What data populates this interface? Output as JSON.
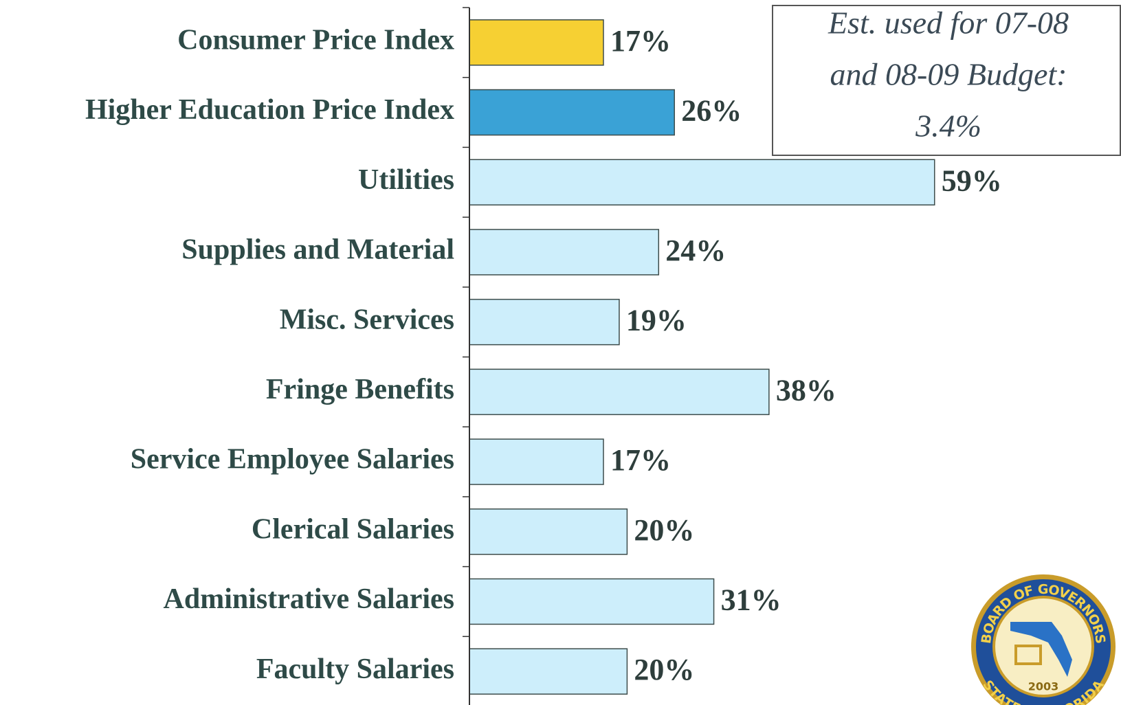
{
  "chart_data": {
    "type": "barh",
    "categories": [
      "Consumer Price Index",
      "Higher Education Price Index",
      "Utilities",
      "Supplies and Material",
      "Misc. Services",
      "Fringe Benefits",
      "Service Employee Salaries",
      "Clerical Salaries",
      "Administrative Salaries",
      "Faculty Salaries"
    ],
    "values": [
      17,
      26,
      59,
      24,
      19,
      38,
      17,
      20,
      31,
      20
    ],
    "value_labels": [
      "17%",
      "26%",
      "59%",
      "24%",
      "19%",
      "38%",
      "17%",
      "20%",
      "31%",
      "20%"
    ],
    "colors": [
      "#f6d033",
      "#3aa2d6",
      "#cdeefb",
      "#cdeefb",
      "#cdeefb",
      "#cdeefb",
      "#cdeefb",
      "#cdeefb",
      "#cdeefb",
      "#cdeefb"
    ],
    "annotation": [
      "Est. used for 07-08",
      "and 08-09 Budget:",
      "3.4%"
    ],
    "logo": {
      "top": "BOARD OF GOVERNORS",
      "bottom": "STATE OF FLORIDA",
      "year": "2003"
    }
  }
}
